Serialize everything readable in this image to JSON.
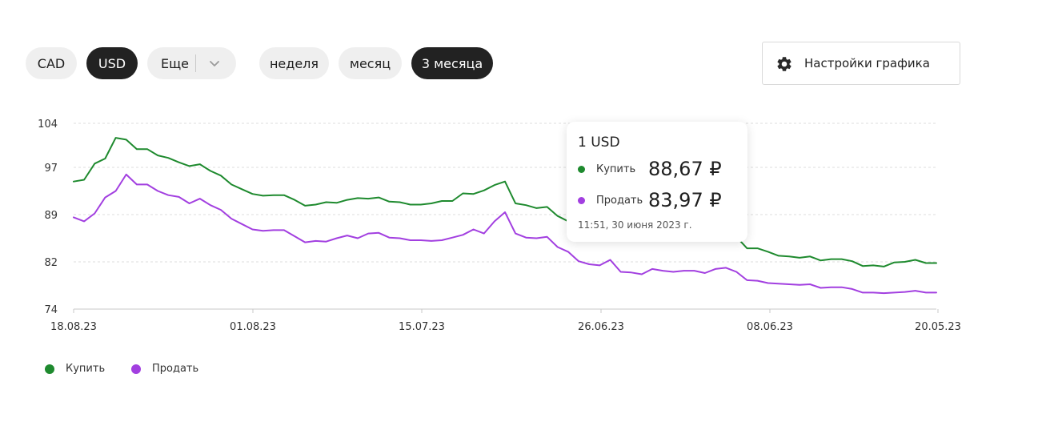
{
  "currencies": {
    "items": [
      {
        "label": "CAD",
        "active": false
      },
      {
        "label": "USD",
        "active": true
      }
    ],
    "more_label": "Еще"
  },
  "periods": [
    {
      "label": "неделя",
      "active": false
    },
    {
      "label": "месяц",
      "active": false
    },
    {
      "label": "3 месяца",
      "active": true
    }
  ],
  "settings": {
    "label": "Настройки графика",
    "icon": "gear-icon"
  },
  "tooltip": {
    "title": "1 USD",
    "buy_label": "Купить",
    "buy_value": "88,67 ₽",
    "sell_label": "Продать",
    "sell_value": "83,97 ₽",
    "time": "11:51, 30 июня 2023 г."
  },
  "colors": {
    "buy": "#1e8a2e",
    "sell": "#a23fe0",
    "active_pill": "#222222",
    "pill": "#efefef"
  },
  "chart_data": {
    "type": "line",
    "x_tick_labels": [
      "18.08.23",
      "01.08.23",
      "15.07.23",
      "26.06.23",
      "08.06.23",
      "20.05.23"
    ],
    "y_tick_labels": [
      "104",
      "97",
      "89",
      "82",
      "74"
    ],
    "ylim": [
      74,
      104
    ],
    "grid": true,
    "legend_position": "bottom-left",
    "series": [
      {
        "name": "Купить",
        "color": "#1e8a2e",
        "values": [
          94.6,
          94.9,
          97.6,
          98.4,
          101.7,
          101.4,
          99.9,
          99.9,
          98.9,
          98.5,
          97.8,
          97.2,
          97.5,
          96.4,
          95.6,
          94.1,
          93.3,
          92.5,
          92.2,
          92.3,
          92.3,
          91.5,
          90.5,
          90.7,
          91.1,
          91.0,
          91.5,
          91.8,
          91.7,
          91.9,
          91.2,
          91.1,
          90.7,
          90.7,
          90.9,
          91.3,
          91.3,
          92.6,
          92.5,
          93.1,
          94.0,
          94.6,
          90.9,
          90.6,
          90.1,
          90.3,
          88.8,
          88.0,
          87.4,
          86.8,
          86.5,
          86.3,
          86.1,
          85.5,
          85.2,
          85.9,
          85.8,
          85.6,
          86.1,
          85.9,
          85.5,
          85.8,
          85.6,
          85.7,
          84.0,
          84.0,
          83.5,
          82.9,
          82.8,
          82.6,
          82.8,
          82.2,
          82.4,
          82.4,
          82.1,
          81.3,
          81.4,
          81.2,
          81.9,
          82.0,
          82.3,
          81.8,
          81.8
        ]
      },
      {
        "name": "Продать",
        "color": "#a23fe0",
        "values": [
          88.6,
          88.0,
          89.2,
          91.9,
          93.0,
          95.8,
          94.1,
          94.1,
          93.0,
          92.3,
          92.0,
          90.9,
          91.7,
          90.6,
          89.8,
          88.4,
          87.6,
          86.8,
          86.6,
          86.7,
          86.7,
          85.8,
          84.9,
          85.1,
          85.0,
          85.5,
          85.9,
          85.5,
          86.2,
          86.3,
          85.6,
          85.5,
          85.2,
          85.2,
          85.1,
          85.2,
          85.6,
          86.0,
          86.8,
          86.2,
          88.0,
          89.4,
          86.2,
          85.6,
          85.5,
          85.7,
          84.2,
          83.5,
          82.1,
          81.6,
          81.4,
          82.3,
          80.3,
          80.2,
          79.9,
          80.8,
          80.5,
          80.3,
          80.5,
          80.5,
          80.1,
          80.8,
          81.0,
          80.3,
          78.9,
          78.8,
          78.4,
          78.3,
          78.2,
          78.1,
          78.2,
          77.6,
          77.7,
          77.7,
          77.4,
          76.8,
          76.8,
          76.7,
          76.8,
          76.9,
          77.1,
          76.8,
          76.8
        ]
      }
    ]
  }
}
